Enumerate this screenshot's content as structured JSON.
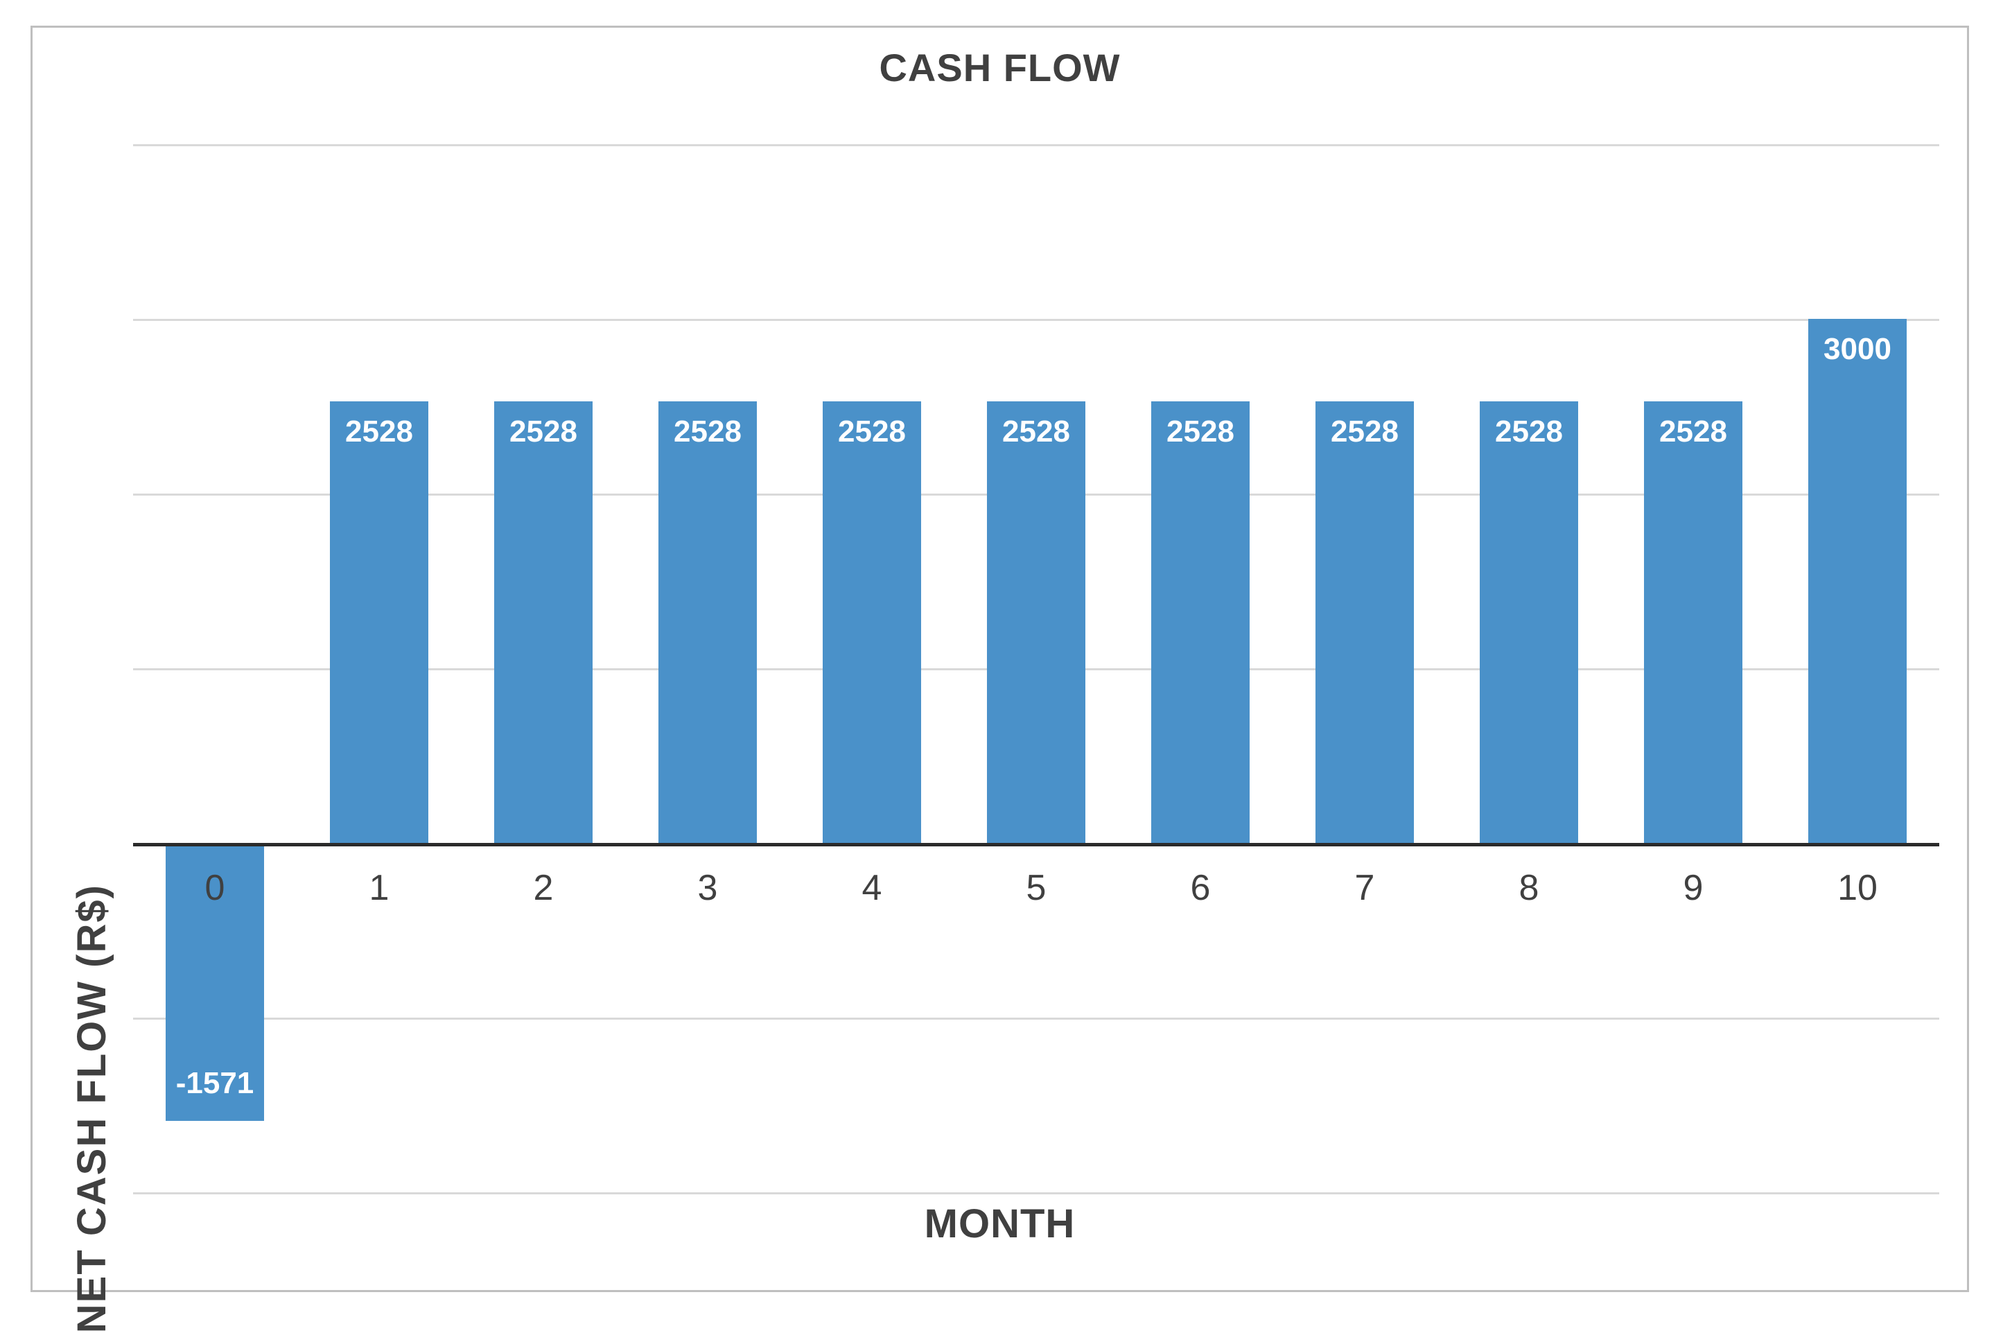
{
  "window": {
    "background": "#ffffff",
    "frame_border_color": "#bfbfbf"
  },
  "chart_data": {
    "type": "bar",
    "title": "CASH FLOW",
    "xlabel": "MONTH",
    "ylabel": "NET CASH FLOW (R$)",
    "categories": [
      "0",
      "1",
      "2",
      "3",
      "4",
      "5",
      "6",
      "7",
      "8",
      "9",
      "10"
    ],
    "values": [
      -1571,
      2528,
      2528,
      2528,
      2528,
      2528,
      2528,
      2528,
      2528,
      2528,
      3000
    ],
    "data_labels": [
      "-1571",
      "2528",
      "2528",
      "2528",
      "2528",
      "2528",
      "2528",
      "2528",
      "2528",
      "2528",
      "3000"
    ],
    "series_name": "NET CASH FLOW",
    "ylim": [
      -2400,
      4200
    ],
    "gridline_values": [
      4000,
      3000,
      2000,
      1000,
      -1000,
      -2000
    ],
    "grid": true,
    "legend": false,
    "y_tick_labels_visible": false,
    "bar_color": "#4a91c9",
    "data_label_color": "#ffffff",
    "grid_color": "#d9d9d9",
    "axis_line_color": "#2b2b2b",
    "text_color": "#404040"
  }
}
